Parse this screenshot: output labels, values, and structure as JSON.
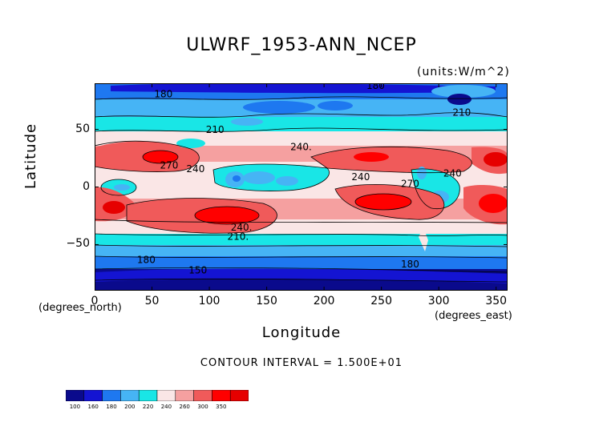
{
  "chart_data": {
    "type": "heatmap",
    "title": "ULWRF_1953-ANN_NCEP",
    "units": "(units:W/m^2)",
    "xlabel": "Longitude",
    "ylabel": "Latitude",
    "x_unit_label": "(degrees_east)",
    "y_unit_label": "(degrees_north)",
    "xlim": [
      0,
      360
    ],
    "ylim": [
      -90,
      90
    ],
    "x_ticks": [
      "0",
      "50",
      "100",
      "150",
      "200",
      "250",
      "300",
      "350"
    ],
    "x_tick_values": [
      0,
      50,
      100,
      150,
      200,
      250,
      300,
      350
    ],
    "y_ticks": [
      "50",
      "0",
      "−50"
    ],
    "y_tick_values": [
      50,
      0,
      -50
    ],
    "contour_interval_text": "CONTOUR INTERVAL = 1.500E+01",
    "contour_labels": [
      {
        "text": "180",
        "lon": 60,
        "lat": 78
      },
      {
        "text": "180",
        "lon": 245,
        "lat": 85
      },
      {
        "text": "210",
        "lon": 105,
        "lat": 47
      },
      {
        "text": "210",
        "lon": 320,
        "lat": 62
      },
      {
        "text": "240.",
        "lon": 180,
        "lat": 32
      },
      {
        "text": "270",
        "lon": 65,
        "lat": 16
      },
      {
        "text": "240",
        "lon": 88,
        "lat": 13
      },
      {
        "text": "240",
        "lon": 232,
        "lat": 6
      },
      {
        "text": "240",
        "lon": 312,
        "lat": 9
      },
      {
        "text": "270",
        "lon": 275,
        "lat": 0
      },
      {
        "text": "240.",
        "lon": 128,
        "lat": -38
      },
      {
        "text": "210.",
        "lon": 125,
        "lat": -46
      },
      {
        "text": "180",
        "lon": 45,
        "lat": -66
      },
      {
        "text": "150",
        "lon": 90,
        "lat": -75
      },
      {
        "text": "180",
        "lon": 275,
        "lat": -70
      }
    ],
    "colorbar": {
      "levels": [
        "100",
        "160",
        "180",
        "200",
        "220",
        "240",
        "260",
        "300",
        "350"
      ],
      "colors": [
        "#0a0a8c",
        "#1414d2",
        "#1e78f0",
        "#46b4f5",
        "#19e6e6",
        "#fae6e6",
        "#f5a0a0",
        "#f05a5a",
        "#ff0000",
        "#e60000"
      ]
    }
  }
}
